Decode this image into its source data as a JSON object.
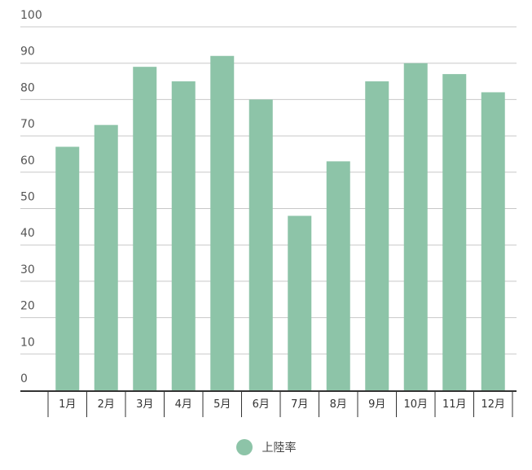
{
  "colors": {
    "bar": "#8dc4a8",
    "grid": "#c8c8c8",
    "axis": "#333333",
    "text": "#555555"
  },
  "chart_data": {
    "type": "bar",
    "categories": [
      "1月",
      "2月",
      "3月",
      "4月",
      "5月",
      "6月",
      "7月",
      "8月",
      "9月",
      "10月",
      "11月",
      "12月"
    ],
    "series": [
      {
        "name": "上陸率",
        "values": [
          67,
          73,
          89,
          85,
          92,
          80,
          48,
          63,
          85,
          90,
          87,
          82
        ]
      }
    ],
    "ylim": [
      0,
      100
    ],
    "yticks": [
      0,
      10,
      20,
      30,
      40,
      50,
      60,
      70,
      80,
      90,
      100
    ],
    "grid": true,
    "legend_position": "bottom-center"
  }
}
